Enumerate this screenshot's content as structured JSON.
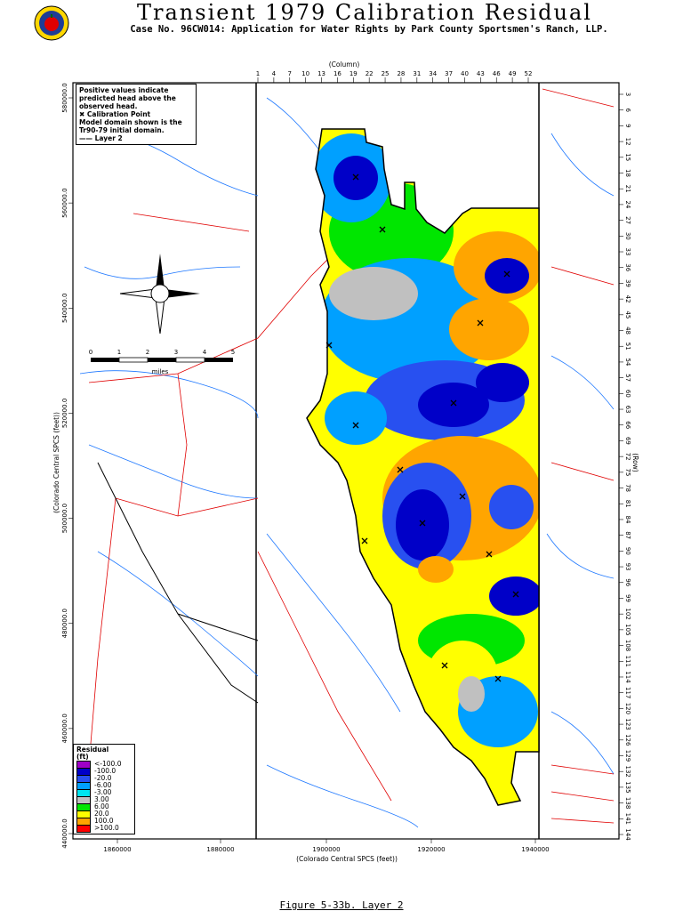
{
  "header": {
    "title": "Transient 1979 Calibration Residual",
    "subtitle": "Case No. 96CW014: Application for Water Rights by Park County Sportsmen's Ranch, LLP."
  },
  "note": {
    "lines": [
      "Positive values indicate",
      "predicted head above the",
      "observed head.",
      "✖ Calibration Point",
      "Model domain shown is the",
      "Tr90-79 initial domain.",
      "—— Layer 2"
    ]
  },
  "axes": {
    "column_label": "(Column)",
    "columns": [
      "1",
      "4",
      "7",
      "10",
      "13",
      "16",
      "19",
      "22",
      "25",
      "28",
      "31",
      "34",
      "37",
      "40",
      "43",
      "46",
      "49",
      "52"
    ],
    "row_label": "(Row)",
    "rows": [
      "3",
      "6",
      "9",
      "12",
      "15",
      "18",
      "21",
      "24",
      "27",
      "30",
      "33",
      "36",
      "39",
      "42",
      "45",
      "48",
      "51",
      "54",
      "57",
      "60",
      "63",
      "66",
      "69",
      "72",
      "75",
      "78",
      "81",
      "84",
      "87",
      "90",
      "93",
      "96",
      "99",
      "102",
      "105",
      "108",
      "111",
      "114",
      "117",
      "120",
      "123",
      "126",
      "129",
      "132",
      "135",
      "138",
      "141",
      "144"
    ],
    "easting_label": "(Colorado Central SPCS (feet))",
    "easting_ticks": [
      "1860000",
      "1880000",
      "1900000",
      "1920000",
      "1940000"
    ],
    "northing_label": "(Colorado Central SPCS (feet))",
    "northing_ticks": [
      "580000.0",
      "560000.0",
      "540000.0",
      "520000.0",
      "500000.0",
      "480000.0",
      "460000.0",
      "440000.0"
    ]
  },
  "scalebar": {
    "ticks": [
      "0",
      "1",
      "2",
      "3",
      "4",
      "5"
    ],
    "unit": "miles"
  },
  "legend": {
    "title": "Residual",
    "unit": "(ft)",
    "items": [
      {
        "label": "<-100.0",
        "color": "#a000c8"
      },
      {
        "label": "-100.0",
        "color": "#0000c8"
      },
      {
        "label": "-20.0",
        "color": "#2850f0"
      },
      {
        "label": "-6.00",
        "color": "#00a0ff"
      },
      {
        "label": "-3.00",
        "color": "#00e6f0"
      },
      {
        "label": "3.00",
        "color": "#c0c0c0"
      },
      {
        "label": "6.00",
        "color": "#00e600"
      },
      {
        "label": "20.0",
        "color": "#ffff00"
      },
      {
        "label": "100.0",
        "color": "#ffa500"
      },
      {
        "label": ">100.0",
        "color": "#ff0000"
      }
    ]
  },
  "caption": "Figure 5-33b.  Layer 2"
}
